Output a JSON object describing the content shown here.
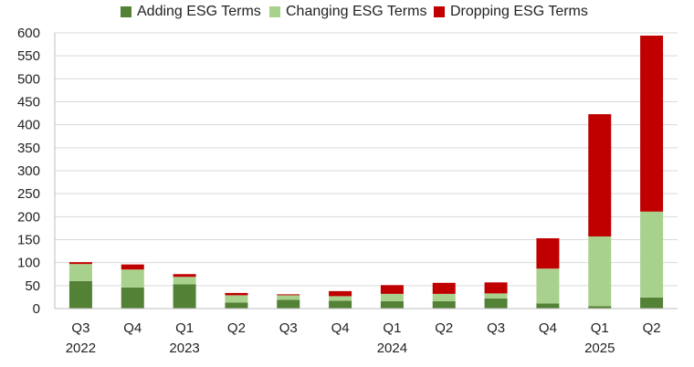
{
  "chart_data": {
    "type": "bar",
    "stacked": true,
    "categories": [
      "Q3",
      "Q4",
      "Q1",
      "Q2",
      "Q3",
      "Q4",
      "Q1",
      "Q2",
      "Q3",
      "Q4",
      "Q1",
      "Q2"
    ],
    "year_labels": [
      "2022",
      "",
      "2023",
      "",
      "",
      "",
      "2024",
      "",
      "",
      "",
      "2025",
      ""
    ],
    "series": [
      {
        "name": "Adding ESG Terms",
        "color": "#538135",
        "values": [
          60,
          46,
          53,
          13,
          19,
          17,
          16,
          16,
          22,
          11,
          5,
          24
        ]
      },
      {
        "name": "Changing ESG Terms",
        "color": "#a9d18e",
        "values": [
          37,
          39,
          16,
          16,
          10,
          10,
          16,
          16,
          11,
          76,
          152,
          187
        ]
      },
      {
        "name": "Dropping ESG Terms",
        "color": "#c00000",
        "values": [
          4,
          11,
          6,
          5,
          2,
          11,
          19,
          24,
          24,
          66,
          266,
          383
        ]
      }
    ],
    "ylim": [
      0,
      600
    ],
    "yticks": [
      0,
      50,
      100,
      150,
      200,
      250,
      300,
      350,
      400,
      450,
      500,
      550,
      600
    ],
    "grid": true,
    "legend": "top-center"
  }
}
